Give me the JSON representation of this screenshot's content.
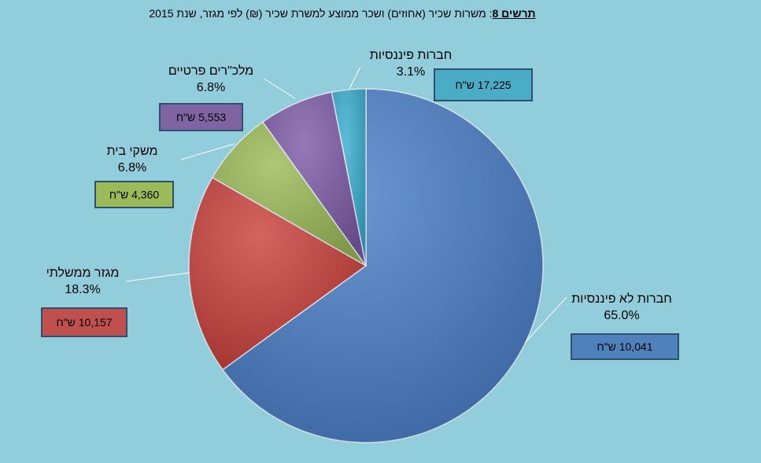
{
  "chart_data": {
    "type": "pie",
    "title_label": "תרשים 8",
    "title": ": משרות שכיר (אחוזים) ושכר ממוצע למשרת שכיר (₪) לפי מגזר, שנת 2015",
    "categories": [
      "חברות לא פיננסיות",
      "מגזר ממשלתי",
      "משקי בית",
      "מלכ\"רים פרטיים",
      "חברות פיננסיות"
    ],
    "values": [
      65.0,
      18.3,
      6.8,
      6.8,
      3.1
    ],
    "value_labels": [
      "65.0%",
      "18.3%",
      "6.8%",
      "6.8%",
      "3.1%"
    ],
    "salaries": [
      10041,
      10157,
      4360,
      5553,
      17225
    ],
    "salary_labels": [
      "10,041 ש\"ח",
      "10,157 ש\"ח",
      "4,360 ש\"ח",
      "5,553 ש\"ח",
      "17,225 ש\"ח"
    ],
    "colors": [
      "#4a7fc8",
      "#c9413b",
      "#9bbb59",
      "#7e5ca8",
      "#3aaed0"
    ],
    "box_colors": [
      "#4f81bd",
      "#c0504d",
      "#9bbb59",
      "#8064a2",
      "#4bacc6"
    ]
  }
}
